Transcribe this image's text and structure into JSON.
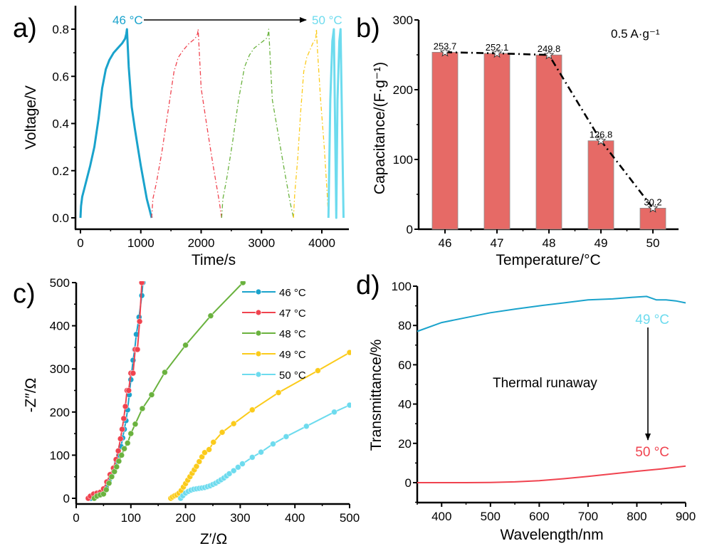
{
  "figure": {
    "panel_labels": [
      "a)",
      "b)",
      "c)",
      "d)"
    ]
  },
  "colors": {
    "c46": "#1aa3cc",
    "c47": "#f0434f",
    "c48": "#6ab23e",
    "c49": "#fbcb1b",
    "c50": "#6ddbee",
    "bar": "#e66a66",
    "bar_edge": "#8c8c8c",
    "d49": "#1aa3cc",
    "d49_label": "#6ddbee",
    "d50": "#f0434f",
    "axis": "#000000"
  },
  "chart_data": [
    {
      "id": "a",
      "type": "line",
      "panel_label": "a)",
      "xlabel": "Time/s",
      "ylabel": "Voltage/V",
      "xlim": [
        -100,
        4550
      ],
      "ylim": [
        -0.05,
        0.9
      ],
      "xticks": [
        0,
        1000,
        2000,
        3000,
        4000
      ],
      "xtick_labels": [
        "0",
        "1000",
        "2000",
        "3000",
        "4000"
      ],
      "yticks": [
        0.0,
        0.2,
        0.4,
        0.6,
        0.8
      ],
      "ytick_labels": [
        "0.0",
        "0.2",
        "0.4",
        "0.6",
        "0.8"
      ],
      "annotation": {
        "start_label": "46 °C",
        "end_label": "50 °C",
        "arrow": "left-to-right"
      },
      "series": [
        {
          "name": "46 °C",
          "color_key": "c46",
          "style": "solid",
          "x": [
            0,
            10,
            30,
            60,
            100,
            160,
            230,
            300,
            360,
            420,
            480,
            550,
            620,
            690,
            740,
            760,
            770,
            800,
            850,
            900,
            950,
            1000,
            1050,
            1100,
            1150,
            1180
          ],
          "y": [
            0.0,
            0.05,
            0.09,
            0.12,
            0.16,
            0.22,
            0.3,
            0.42,
            0.55,
            0.63,
            0.67,
            0.7,
            0.72,
            0.74,
            0.76,
            0.78,
            0.8,
            0.64,
            0.47,
            0.38,
            0.3,
            0.22,
            0.15,
            0.08,
            0.03,
            0.0
          ]
        },
        {
          "name": "47 °C",
          "color_key": "c47",
          "style": "dashdot",
          "x": [
            1180,
            1200,
            1260,
            1350,
            1450,
            1550,
            1620,
            1700,
            1800,
            1900,
            1940,
            1950,
            2000,
            2100,
            2200,
            2300,
            2340
          ],
          "y": [
            0.0,
            0.08,
            0.15,
            0.28,
            0.45,
            0.62,
            0.68,
            0.71,
            0.74,
            0.76,
            0.78,
            0.8,
            0.55,
            0.38,
            0.22,
            0.07,
            0.0
          ]
        },
        {
          "name": "48 °C",
          "color_key": "c48",
          "style": "dashdot",
          "x": [
            2340,
            2360,
            2420,
            2520,
            2620,
            2720,
            2800,
            2880,
            2980,
            3080,
            3110,
            3120,
            3180,
            3280,
            3380,
            3480,
            3530
          ],
          "y": [
            0.0,
            0.08,
            0.16,
            0.32,
            0.5,
            0.64,
            0.69,
            0.72,
            0.74,
            0.76,
            0.78,
            0.8,
            0.5,
            0.35,
            0.2,
            0.06,
            0.0
          ]
        },
        {
          "name": "49 °C",
          "color_key": "c49",
          "style": "dashdot",
          "x": [
            3530,
            3550,
            3600,
            3650,
            3700,
            3750,
            3800,
            3850,
            3900,
            3910,
            3930,
            3980,
            4040,
            4090,
            4110
          ],
          "y": [
            0.0,
            0.1,
            0.25,
            0.45,
            0.62,
            0.68,
            0.71,
            0.74,
            0.76,
            0.8,
            0.7,
            0.5,
            0.3,
            0.1,
            0.0
          ]
        },
        {
          "name": "50 °C",
          "color_key": "c50",
          "style": "solid",
          "x": [
            4110,
            4140,
            4175,
            4200,
            4220,
            4240,
            4260,
            4290,
            4310,
            4335,
            4360
          ],
          "y": [
            0.0,
            0.5,
            0.75,
            0.8,
            0.4,
            0.0,
            0.5,
            0.75,
            0.8,
            0.4,
            0.0
          ]
        }
      ]
    },
    {
      "id": "b",
      "type": "bar",
      "panel_label": "b)",
      "xlabel": "Temperature/°C",
      "ylabel": "Capacitance/(F·g⁻¹)",
      "ylim": [
        0,
        300
      ],
      "yticks": [
        0,
        100,
        200,
        300
      ],
      "ytick_labels": [
        "0",
        "100",
        "200",
        "300"
      ],
      "categories": [
        "46",
        "47",
        "48",
        "49",
        "50"
      ],
      "values": [
        253.7,
        252.1,
        249.8,
        126.8,
        30.2
      ],
      "data_labels": [
        "253.7",
        "252.1",
        "249.8",
        "126.8",
        "30.2"
      ],
      "overlay": {
        "type": "line",
        "style": "dashdot",
        "marker": "star",
        "values": [
          253.7,
          252.1,
          249.8,
          126.8,
          30.2
        ]
      },
      "annotation": "0.5 A·g⁻¹"
    },
    {
      "id": "c",
      "type": "scatter",
      "panel_label": "c)",
      "xlabel": "Z′/Ω",
      "ylabel": "-Z″/Ω",
      "xlim": [
        0,
        500
      ],
      "ylim": [
        -10,
        500
      ],
      "xticks": [
        0,
        100,
        200,
        300,
        400,
        500
      ],
      "xtick_labels": [
        "0",
        "100",
        "200",
        "300",
        "400",
        "500"
      ],
      "yticks": [
        0,
        100,
        200,
        300,
        400,
        500
      ],
      "ytick_labels": [
        "0",
        "100",
        "200",
        "300",
        "400",
        "500"
      ],
      "legend_position": "top-right",
      "series": [
        {
          "name": "46 °C",
          "color_key": "c46",
          "x": [
            27,
            32,
            38,
            44,
            50,
            55,
            60,
            65,
            70,
            74,
            78,
            82,
            85,
            88,
            91,
            94,
            97,
            100,
            104,
            107,
            110,
            115,
            120,
            122
          ],
          "y": [
            0,
            5,
            10,
            12,
            15,
            25,
            40,
            55,
            70,
            85,
            100,
            120,
            140,
            160,
            180,
            205,
            240,
            275,
            320,
            345,
            380,
            420,
            470,
            500
          ]
        },
        {
          "name": "47 °C",
          "color_key": "c47",
          "x": [
            22,
            26,
            32,
            38,
            44,
            50,
            56,
            62,
            68,
            73,
            77,
            81,
            84,
            87,
            90,
            93,
            96,
            100,
            104,
            108,
            112,
            116,
            120
          ],
          "y": [
            0,
            5,
            10,
            12,
            14,
            22,
            38,
            55,
            70,
            90,
            110,
            138,
            160,
            185,
            213,
            250,
            250,
            290,
            290,
            345,
            345,
            410,
            500
          ]
        },
        {
          "name": "48 °C",
          "color_key": "c48",
          "x": [
            33,
            38,
            44,
            50,
            55,
            60,
            65,
            70,
            74,
            78,
            83,
            88,
            94,
            100,
            108,
            121,
            138,
            162,
            200,
            246,
            305
          ],
          "y": [
            0,
            5,
            8,
            10,
            20,
            35,
            50,
            62,
            73,
            86,
            100,
            115,
            128,
            150,
            172,
            208,
            240,
            292,
            355,
            423,
            500
          ]
        },
        {
          "name": "49 °C",
          "color_key": "c49",
          "x": [
            173,
            176,
            180,
            184,
            188,
            192,
            196,
            200,
            204,
            208,
            212,
            216,
            220,
            225,
            230,
            235,
            243,
            251,
            267,
            288,
            322,
            370,
            442,
            500
          ],
          "y": [
            0,
            3,
            6,
            8,
            12,
            18,
            26,
            34,
            42,
            50,
            58,
            66,
            74,
            85,
            96,
            106,
            113,
            130,
            153,
            173,
            205,
            245,
            296,
            338
          ]
        },
        {
          "name": "50 °C",
          "color_key": "c50",
          "x": [
            191,
            195,
            200,
            205,
            210,
            215,
            220,
            225,
            230,
            235,
            240,
            245,
            250,
            255,
            260,
            265,
            270,
            275,
            280,
            288,
            296,
            304,
            322,
            338,
            360,
            384,
            421,
            472,
            500
          ],
          "y": [
            0,
            6,
            12,
            16,
            19,
            21,
            22,
            23,
            24,
            25,
            27,
            29,
            32,
            35,
            39,
            43,
            47,
            52,
            57,
            64,
            72,
            80,
            95,
            107,
            126,
            143,
            167,
            200,
            216
          ]
        }
      ]
    },
    {
      "id": "d",
      "type": "line",
      "panel_label": "d)",
      "xlabel": "Wavelength/nm",
      "ylabel": "Transmittance/%",
      "xlim": [
        350,
        900
      ],
      "ylim": [
        -10,
        100
      ],
      "xticks": [
        400,
        500,
        600,
        700,
        800,
        900
      ],
      "xtick_labels": [
        "400",
        "500",
        "600",
        "700",
        "800",
        "900"
      ],
      "yticks": [
        0,
        20,
        40,
        60,
        80,
        100
      ],
      "ytick_labels": [
        "0",
        "20",
        "40",
        "60",
        "80",
        "100"
      ],
      "annotations": [
        "49 °C",
        "Thermal runaway",
        "50 °C"
      ],
      "series": [
        {
          "name": "49 °C",
          "color_key": "d49",
          "x": [
            350,
            400,
            450,
            500,
            550,
            600,
            650,
            700,
            750,
            800,
            820,
            840,
            860,
            880,
            900
          ],
          "y": [
            77,
            81.5,
            84,
            86.5,
            88.3,
            90,
            91.5,
            93,
            93.5,
            94.5,
            94.8,
            93,
            93,
            92.5,
            91.5
          ]
        },
        {
          "name": "50 °C",
          "color_key": "d50",
          "x": [
            350,
            400,
            450,
            500,
            550,
            600,
            650,
            700,
            750,
            800,
            850,
            900
          ],
          "y": [
            0,
            0,
            0,
            0.1,
            0.4,
            1,
            2,
            3.2,
            4.5,
            5.8,
            7,
            8.4
          ]
        }
      ]
    }
  ]
}
